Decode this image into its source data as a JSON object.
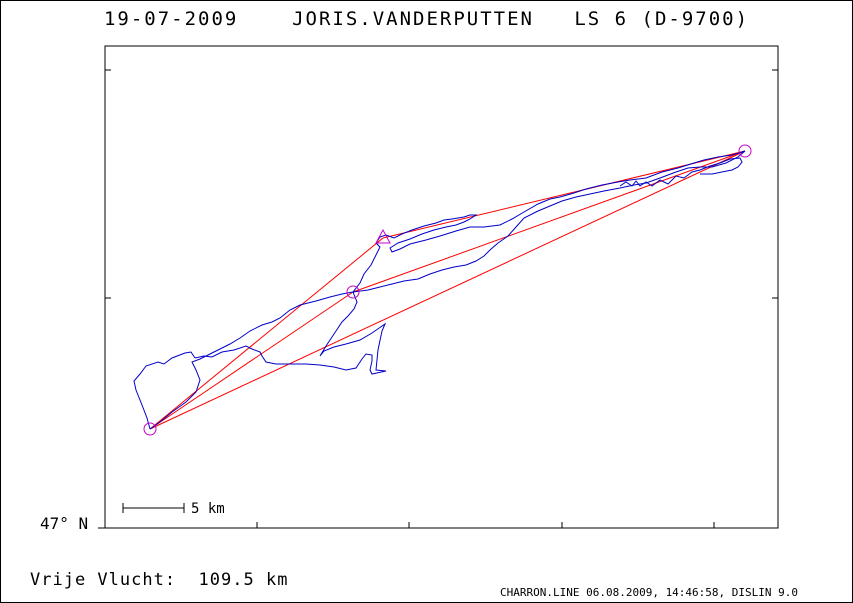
{
  "header": {
    "date": "19-07-2009",
    "pilot": "JORIS.VANDERPUTTEN",
    "glider": "LS 6 (D-9700)"
  },
  "map": {
    "latitude_label": "47° N",
    "scale_label": "5 km",
    "track_color": "#0000c8",
    "task_color": "#ff0000",
    "turnpoint_color": "#c800c8"
  },
  "summary": {
    "label": "Vrije Vlucht:",
    "distance": "109.5 km"
  },
  "footer": {
    "text": "CHARRON.LINE 06.08.2009, 14:46:58, DISLIN 9.0"
  }
}
